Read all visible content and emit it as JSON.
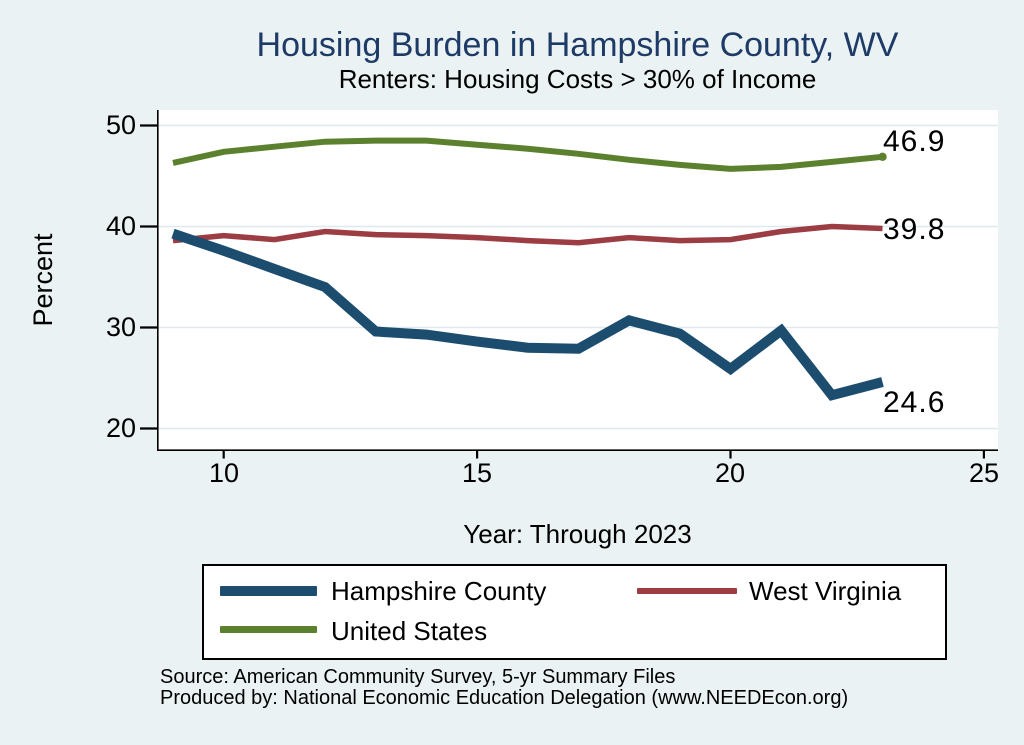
{
  "header": {
    "title": "Housing Burden in Hampshire County, WV",
    "subtitle": "Renters: Housing Costs > 30% of Income"
  },
  "chart_data": {
    "type": "line",
    "title": "Housing Burden in Hampshire County, WV",
    "subtitle": "Renters: Housing Costs > 30% of Income",
    "xlabel": "Year: Through 2023",
    "ylabel": "Percent",
    "grid": true,
    "legend_position": "bottom",
    "xlim": [
      8.7,
      25.3
    ],
    "ylim": [
      17.7,
      51.5
    ],
    "xticks": [
      10,
      15,
      20,
      25
    ],
    "yticks": [
      50,
      40,
      30,
      20
    ],
    "x": [
      9,
      10,
      11,
      12,
      13,
      14,
      15,
      16,
      17,
      18,
      19,
      20,
      21,
      22,
      23
    ],
    "series": [
      {
        "name": "Hampshire County",
        "color": "#1d4d6e",
        "width": 10,
        "end_label": "24.6",
        "values": [
          39.3,
          37.6,
          35.8,
          34.0,
          29.6,
          29.3,
          28.6,
          28.0,
          27.9,
          30.7,
          29.4,
          25.9,
          29.7,
          23.3,
          24.6
        ]
      },
      {
        "name": "West Virginia",
        "color": "#9c3c43",
        "width": 5.5,
        "end_label": "39.8",
        "values": [
          38.6,
          39.1,
          38.7,
          39.5,
          39.2,
          39.1,
          38.9,
          38.6,
          38.4,
          38.9,
          38.6,
          38.7,
          39.5,
          40.0,
          39.8
        ]
      },
      {
        "name": "United States",
        "color": "#5c812e",
        "width": 6,
        "end_dot": true,
        "end_label": "46.9",
        "values": [
          46.3,
          47.4,
          47.9,
          48.4,
          48.5,
          48.5,
          48.1,
          47.7,
          47.2,
          46.6,
          46.1,
          45.7,
          45.9,
          46.4,
          46.9
        ]
      }
    ],
    "colors": {
      "background": "#eaf2f3",
      "plot_background": "#ffffff",
      "gridline": "#dde9ef",
      "axis": "#000000",
      "title": "#1e3a66"
    }
  },
  "legend": {
    "items": [
      {
        "label": "Hampshire County"
      },
      {
        "label": "West Virginia"
      },
      {
        "label": "United States"
      }
    ]
  },
  "footer": {
    "source": "Source: American Community Survey, 5-yr Summary Files",
    "produced_by": "Produced by: National Economic Education Delegation (www.NEEDEcon.org)"
  }
}
